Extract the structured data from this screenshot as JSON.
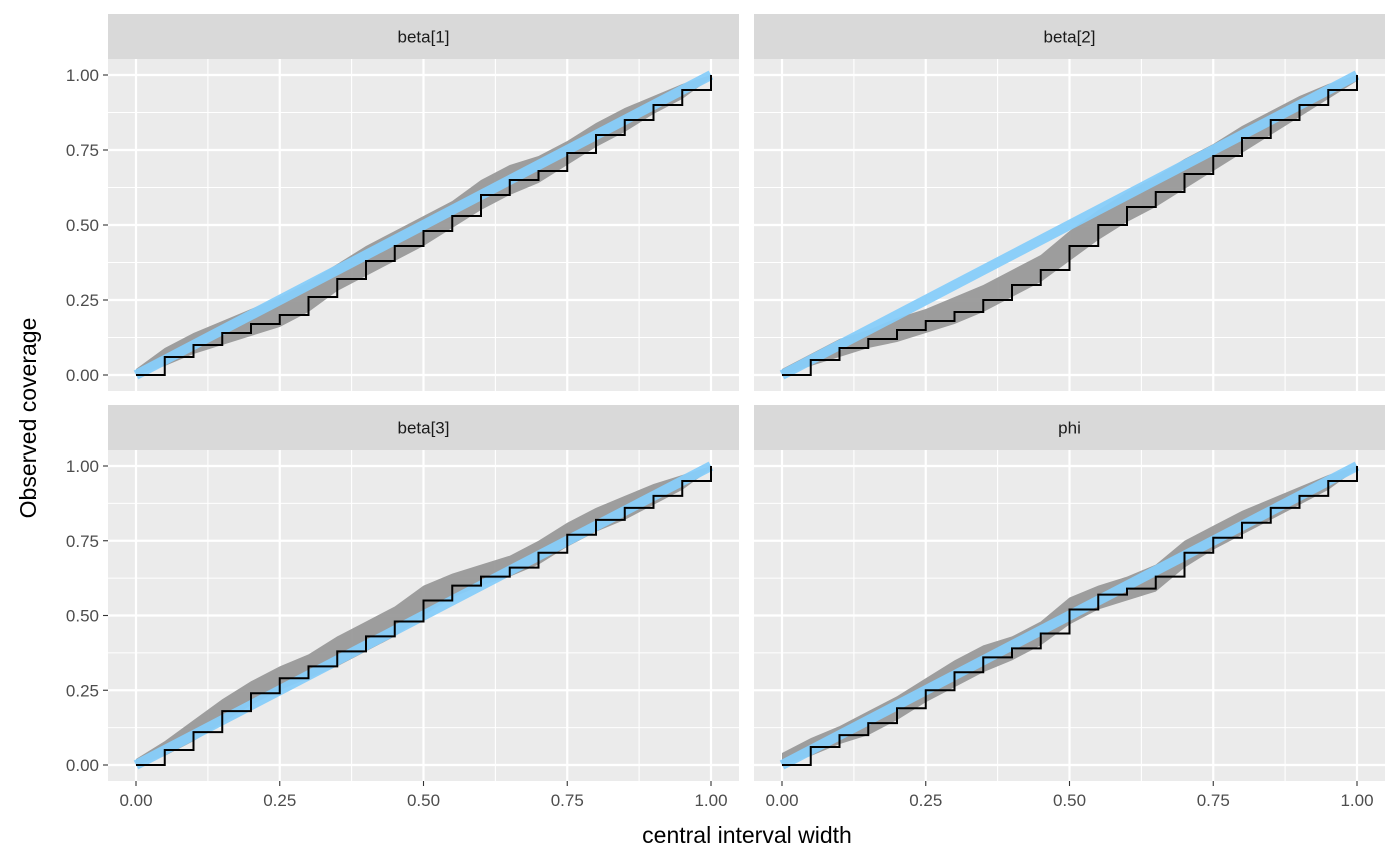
{
  "chart_data": {
    "type": "line",
    "xlabel": "central interval width",
    "ylabel": "Observed coverage",
    "xlim": [
      0,
      1
    ],
    "ylim": [
      0,
      1
    ],
    "x_ticks": [
      "0.00",
      "0.25",
      "0.50",
      "0.75",
      "1.00"
    ],
    "y_ticks": [
      "0.00",
      "0.25",
      "0.50",
      "0.75",
      "1.00"
    ],
    "grid": true,
    "legend": "none",
    "colors": {
      "panel_bg": "#ebebeb",
      "strip_bg": "#d9d9d9",
      "grid": "#ffffff",
      "reference_line": "#87cefa",
      "band": "#999999",
      "observed_line": "#000000"
    },
    "panels": [
      {
        "label": "beta[1]",
        "x": [
          0,
          0.05,
          0.1,
          0.15,
          0.2,
          0.25,
          0.3,
          0.35,
          0.4,
          0.45,
          0.5,
          0.55,
          0.6,
          0.65,
          0.7,
          0.75,
          0.8,
          0.85,
          0.9,
          0.95,
          1.0
        ],
        "observed": [
          0.0,
          0.06,
          0.1,
          0.14,
          0.17,
          0.2,
          0.26,
          0.32,
          0.38,
          0.43,
          0.48,
          0.53,
          0.6,
          0.65,
          0.68,
          0.74,
          0.8,
          0.85,
          0.9,
          0.95,
          1.0
        ],
        "lower": [
          0.0,
          0.03,
          0.07,
          0.1,
          0.13,
          0.16,
          0.21,
          0.28,
          0.33,
          0.38,
          0.43,
          0.49,
          0.55,
          0.6,
          0.64,
          0.7,
          0.76,
          0.81,
          0.87,
          0.92,
          0.99
        ],
        "upper": [
          0.02,
          0.09,
          0.14,
          0.18,
          0.22,
          0.26,
          0.31,
          0.37,
          0.43,
          0.48,
          0.53,
          0.58,
          0.65,
          0.7,
          0.73,
          0.78,
          0.84,
          0.89,
          0.93,
          0.97,
          1.0
        ]
      },
      {
        "label": "beta[2]",
        "x": [
          0,
          0.05,
          0.1,
          0.15,
          0.2,
          0.25,
          0.3,
          0.35,
          0.4,
          0.45,
          0.5,
          0.55,
          0.6,
          0.65,
          0.7,
          0.75,
          0.8,
          0.85,
          0.9,
          0.95,
          1.0
        ],
        "observed": [
          0.0,
          0.05,
          0.09,
          0.12,
          0.15,
          0.18,
          0.21,
          0.25,
          0.3,
          0.35,
          0.43,
          0.5,
          0.56,
          0.61,
          0.67,
          0.73,
          0.79,
          0.85,
          0.9,
          0.95,
          1.0
        ],
        "lower": [
          0.0,
          0.03,
          0.06,
          0.09,
          0.11,
          0.14,
          0.17,
          0.21,
          0.26,
          0.31,
          0.38,
          0.45,
          0.51,
          0.56,
          0.62,
          0.68,
          0.74,
          0.8,
          0.86,
          0.92,
          0.98
        ],
        "upper": [
          0.02,
          0.07,
          0.12,
          0.15,
          0.19,
          0.22,
          0.26,
          0.3,
          0.35,
          0.4,
          0.48,
          0.55,
          0.61,
          0.66,
          0.72,
          0.77,
          0.83,
          0.88,
          0.93,
          0.97,
          1.0
        ]
      },
      {
        "label": "beta[3]",
        "x": [
          0,
          0.05,
          0.1,
          0.15,
          0.2,
          0.25,
          0.3,
          0.35,
          0.4,
          0.45,
          0.5,
          0.55,
          0.6,
          0.65,
          0.7,
          0.75,
          0.8,
          0.85,
          0.9,
          0.95,
          1.0
        ],
        "observed": [
          0.0,
          0.05,
          0.11,
          0.18,
          0.24,
          0.29,
          0.33,
          0.38,
          0.43,
          0.48,
          0.55,
          0.6,
          0.63,
          0.66,
          0.71,
          0.77,
          0.82,
          0.86,
          0.9,
          0.95,
          1.0
        ],
        "lower": [
          0.0,
          0.03,
          0.08,
          0.14,
          0.2,
          0.25,
          0.29,
          0.33,
          0.38,
          0.43,
          0.5,
          0.56,
          0.6,
          0.63,
          0.67,
          0.73,
          0.78,
          0.82,
          0.87,
          0.92,
          0.99
        ],
        "upper": [
          0.02,
          0.08,
          0.15,
          0.22,
          0.28,
          0.33,
          0.37,
          0.43,
          0.48,
          0.53,
          0.6,
          0.64,
          0.67,
          0.7,
          0.75,
          0.81,
          0.86,
          0.9,
          0.94,
          0.97,
          1.0
        ]
      },
      {
        "label": "phi",
        "x": [
          0,
          0.05,
          0.1,
          0.15,
          0.2,
          0.25,
          0.3,
          0.35,
          0.4,
          0.45,
          0.5,
          0.55,
          0.6,
          0.65,
          0.7,
          0.75,
          0.8,
          0.85,
          0.9,
          0.95,
          1.0
        ],
        "observed": [
          0.0,
          0.06,
          0.1,
          0.14,
          0.19,
          0.25,
          0.31,
          0.36,
          0.39,
          0.44,
          0.52,
          0.57,
          0.59,
          0.63,
          0.71,
          0.76,
          0.81,
          0.86,
          0.9,
          0.95,
          1.0
        ],
        "lower": [
          0.0,
          0.03,
          0.07,
          0.1,
          0.15,
          0.21,
          0.26,
          0.31,
          0.35,
          0.4,
          0.47,
          0.52,
          0.55,
          0.58,
          0.66,
          0.72,
          0.77,
          0.82,
          0.87,
          0.92,
          0.99
        ],
        "upper": [
          0.04,
          0.09,
          0.13,
          0.18,
          0.23,
          0.29,
          0.35,
          0.4,
          0.43,
          0.48,
          0.56,
          0.6,
          0.63,
          0.67,
          0.75,
          0.8,
          0.85,
          0.89,
          0.93,
          0.97,
          1.0
        ]
      }
    ]
  }
}
